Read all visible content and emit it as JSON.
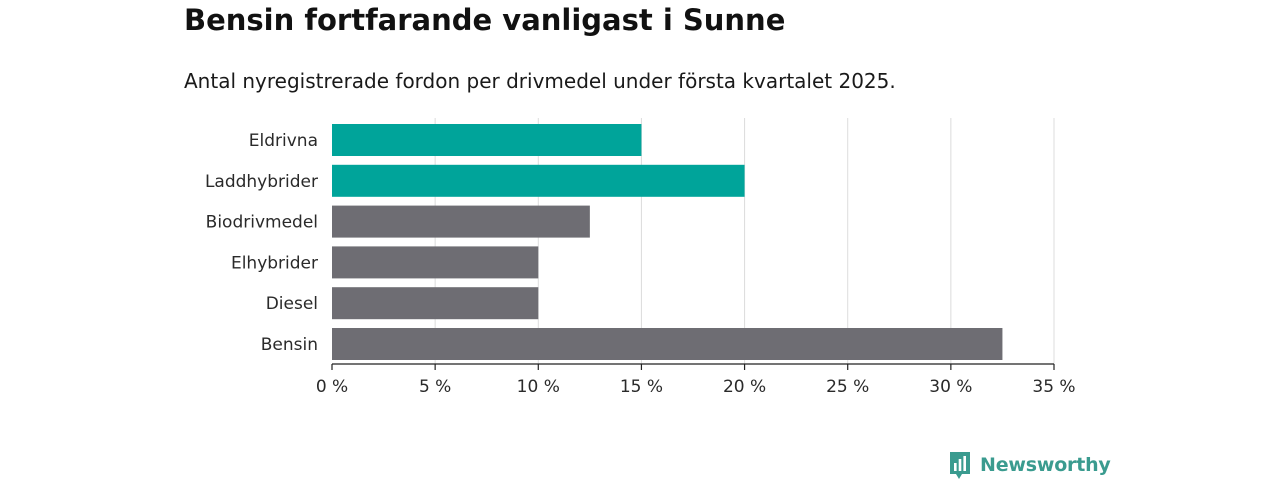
{
  "header": {
    "title": "Bensin fortfarande vanligast i Sunne",
    "subtitle": "Antal nyregistrerade fordon per drivmedel under första kvartalet 2025."
  },
  "brand": {
    "name": "Newsworthy",
    "color": "#3a9b8f",
    "icon": "bar-chart-logo-icon"
  },
  "colors": {
    "highlight": "#00a49a",
    "default": "#6e6d73",
    "grid": "#dcdcdc",
    "axis": "#222222"
  },
  "chart_data": {
    "type": "bar",
    "orientation": "horizontal",
    "categories": [
      "Eldrivna",
      "Laddhybrider",
      "Biodrivmedel",
      "Elhybrider",
      "Diesel",
      "Bensin"
    ],
    "values": [
      15,
      20,
      12.5,
      10,
      10,
      32.5
    ],
    "highlighted": [
      true,
      true,
      false,
      false,
      false,
      false
    ],
    "xlim": [
      0,
      35
    ],
    "x_ticks": [
      0,
      5,
      10,
      15,
      20,
      25,
      30,
      35
    ],
    "x_tick_labels": [
      "0 %",
      "5 %",
      "10 %",
      "15 %",
      "20 %",
      "25 %",
      "30 %",
      "35 %"
    ],
    "grid": true,
    "legend": "none"
  }
}
